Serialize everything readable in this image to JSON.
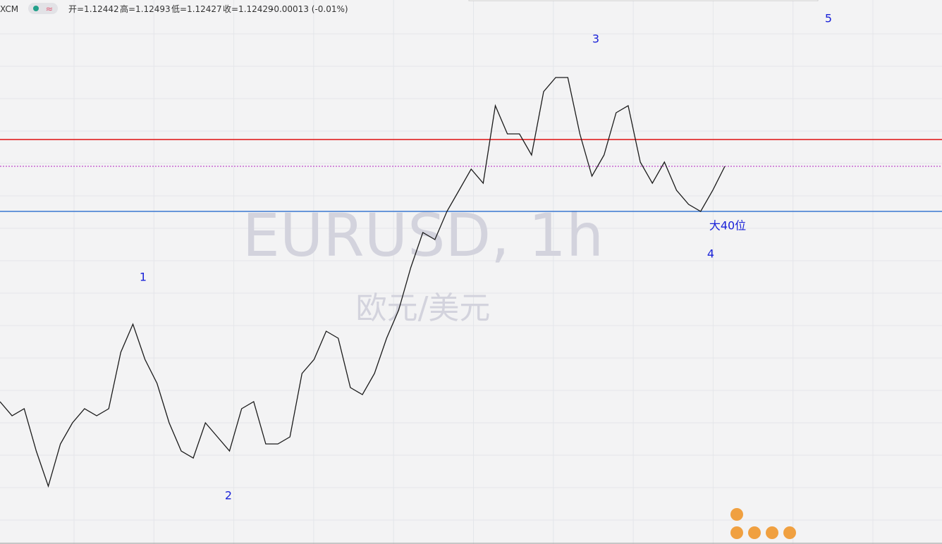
{
  "header": {
    "symbol": "XCM",
    "open": "开=1.12442",
    "high": "高=1.12493",
    "low": "低=1.12427",
    "close": "收=1.12429",
    "change": "-0.00013 (-0.01%)"
  },
  "watermark": {
    "symbol": "EURUSD, 1h",
    "name": "欧元/美元"
  },
  "chart_data": {
    "type": "line",
    "color": "#1a1a1a",
    "ylim": [
      1.0975,
      1.1361
    ],
    "values": [
      1.1076,
      1.1066,
      1.1071,
      1.1041,
      1.1016,
      1.1046,
      1.1061,
      1.1071,
      1.1066,
      1.1071,
      1.1111,
      1.1131,
      1.1106,
      1.1089,
      1.1061,
      1.1041,
      1.1036,
      1.1061,
      1.1051,
      1.1041,
      1.1071,
      1.1076,
      1.1046,
      1.1046,
      1.1051,
      1.1096,
      1.1106,
      1.1126,
      1.1121,
      1.1086,
      1.1081,
      1.1096,
      1.1121,
      1.1141,
      1.1171,
      1.1196,
      1.1191,
      1.1211,
      1.1226,
      1.1241,
      1.1231,
      1.1286,
      1.1266,
      1.1266,
      1.1251,
      1.1296,
      1.1306,
      1.1306,
      1.1266,
      1.1236,
      1.1251,
      1.1281,
      1.1286,
      1.1246,
      1.1231,
      1.1246,
      1.1226,
      1.1216,
      1.1211,
      1.1226,
      1.1243
    ],
    "levels": [
      {
        "value": 1.1262,
        "color": "#e01010",
        "style": "solid"
      },
      {
        "value": 1.1211,
        "color": "#3a78d0",
        "style": "solid"
      },
      {
        "value": 1.1243,
        "color": "#b020c0",
        "style": "dotted"
      }
    ],
    "annotations": [
      "1",
      "2",
      "3",
      "4",
      "5",
      "大40位"
    ]
  }
}
